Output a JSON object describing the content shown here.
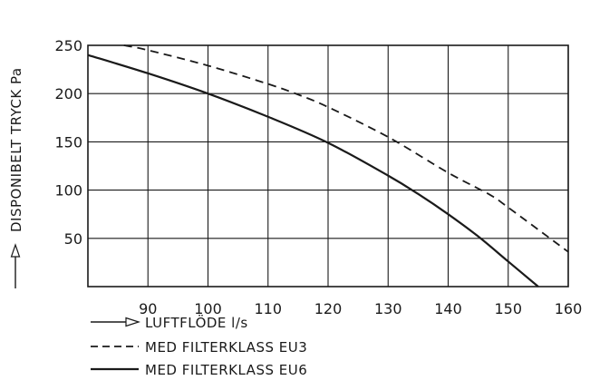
{
  "chart_data": {
    "type": "line",
    "title": "",
    "xlabel": "LUFTFLÖDE l/s",
    "ylabel": "DISPONIBELT TRYCK Pa",
    "xlim": [
      80,
      160
    ],
    "ylim": [
      0,
      250
    ],
    "x_ticks": [
      "90",
      "100",
      "110",
      "120",
      "130",
      "140",
      "150",
      "160"
    ],
    "y_ticks": [
      "50",
      "100",
      "150",
      "200",
      "250"
    ],
    "grid": true,
    "legend_position": "bottom-left",
    "series": [
      {
        "name": "MED FILTERKLASS EU3",
        "line_style": "dashed",
        "x": [
          86,
          90,
          100,
          110,
          115,
          120,
          130,
          140,
          147,
          150,
          160
        ],
        "y": [
          250,
          245,
          229,
          210,
          199,
          186,
          155,
          118,
          95,
          82,
          36
        ]
      },
      {
        "name": "MED FILTERKLASS EU6",
        "line_style": "solid",
        "x": [
          80,
          90,
          100,
          110,
          120,
          130,
          135,
          140,
          145,
          150,
          155
        ],
        "y": [
          240,
          221,
          200,
          176,
          149,
          115,
          96,
          75,
          52,
          26,
          0
        ]
      }
    ]
  }
}
